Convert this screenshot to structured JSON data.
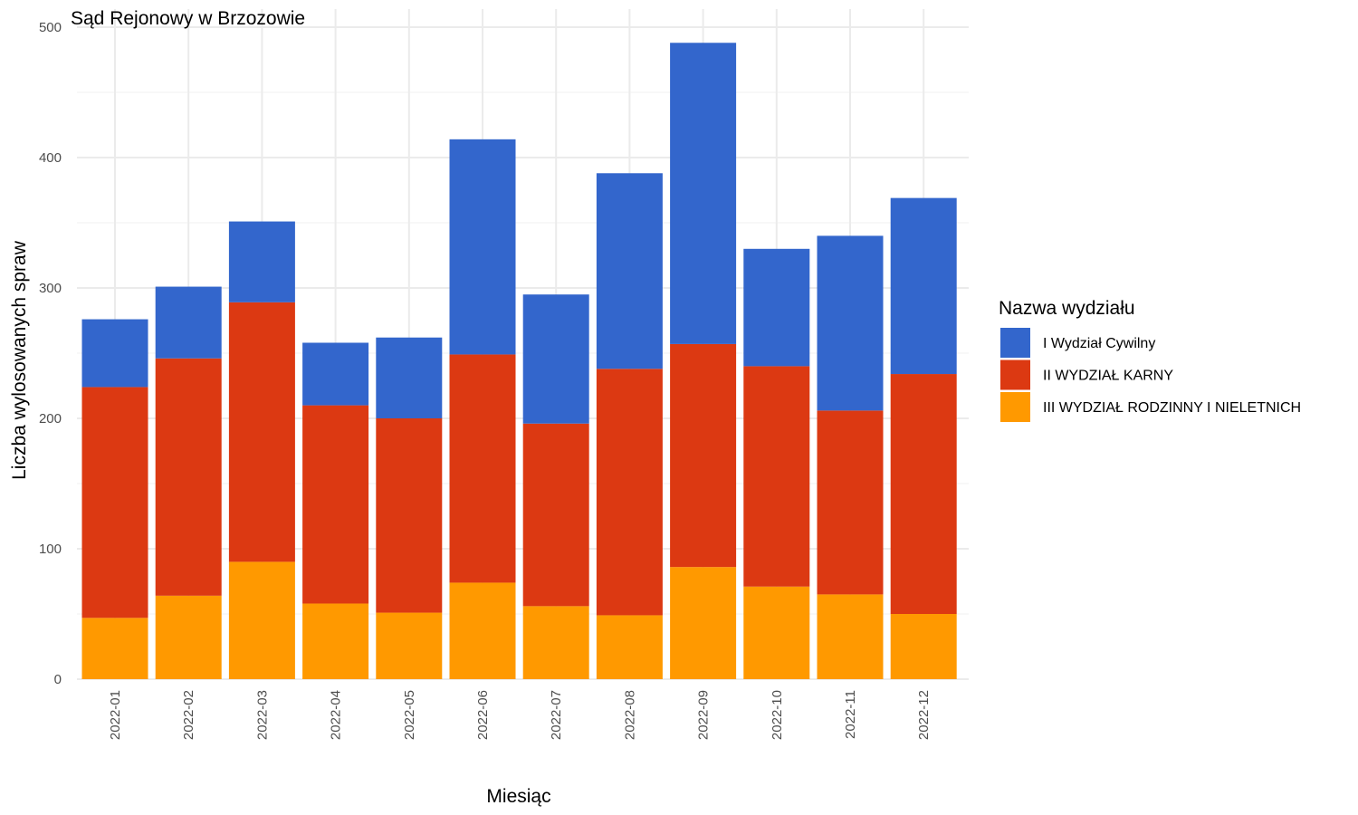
{
  "chart_data": {
    "type": "bar",
    "stacked": true,
    "title": "Sąd Rejonowy w Brzozowie",
    "xlabel": "Miesiąc",
    "ylabel": "Liczba wylosowanych spraw",
    "ylim": [
      0,
      500
    ],
    "yticks": [
      0,
      100,
      200,
      300,
      400,
      500
    ],
    "grid": true,
    "legend_position": "right",
    "legend_title": "Nazwa wydziału",
    "categories": [
      "2022-01",
      "2022-02",
      "2022-03",
      "2022-04",
      "2022-05",
      "2022-06",
      "2022-07",
      "2022-08",
      "2022-09",
      "2022-10",
      "2022-11",
      "2022-12"
    ],
    "series": [
      {
        "name": "III WYDZIAŁ RODZINNY I NIELETNICH",
        "color": "#FF9900",
        "values": [
          47,
          64,
          90,
          58,
          51,
          74,
          56,
          49,
          86,
          71,
          65,
          50
        ]
      },
      {
        "name": "II WYDZIAŁ KARNY",
        "color": "#DC3912",
        "values": [
          177,
          182,
          199,
          152,
          149,
          175,
          140,
          189,
          171,
          169,
          141,
          184
        ]
      },
      {
        "name": "I Wydział Cywilny",
        "color": "#3366CC",
        "values": [
          52,
          55,
          62,
          48,
          62,
          165,
          99,
          150,
          231,
          90,
          134,
          135
        ]
      }
    ],
    "legend_order": [
      "I Wydział Cywilny",
      "II WYDZIAŁ KARNY",
      "III WYDZIAŁ RODZINNY I NIELETNICH"
    ]
  }
}
